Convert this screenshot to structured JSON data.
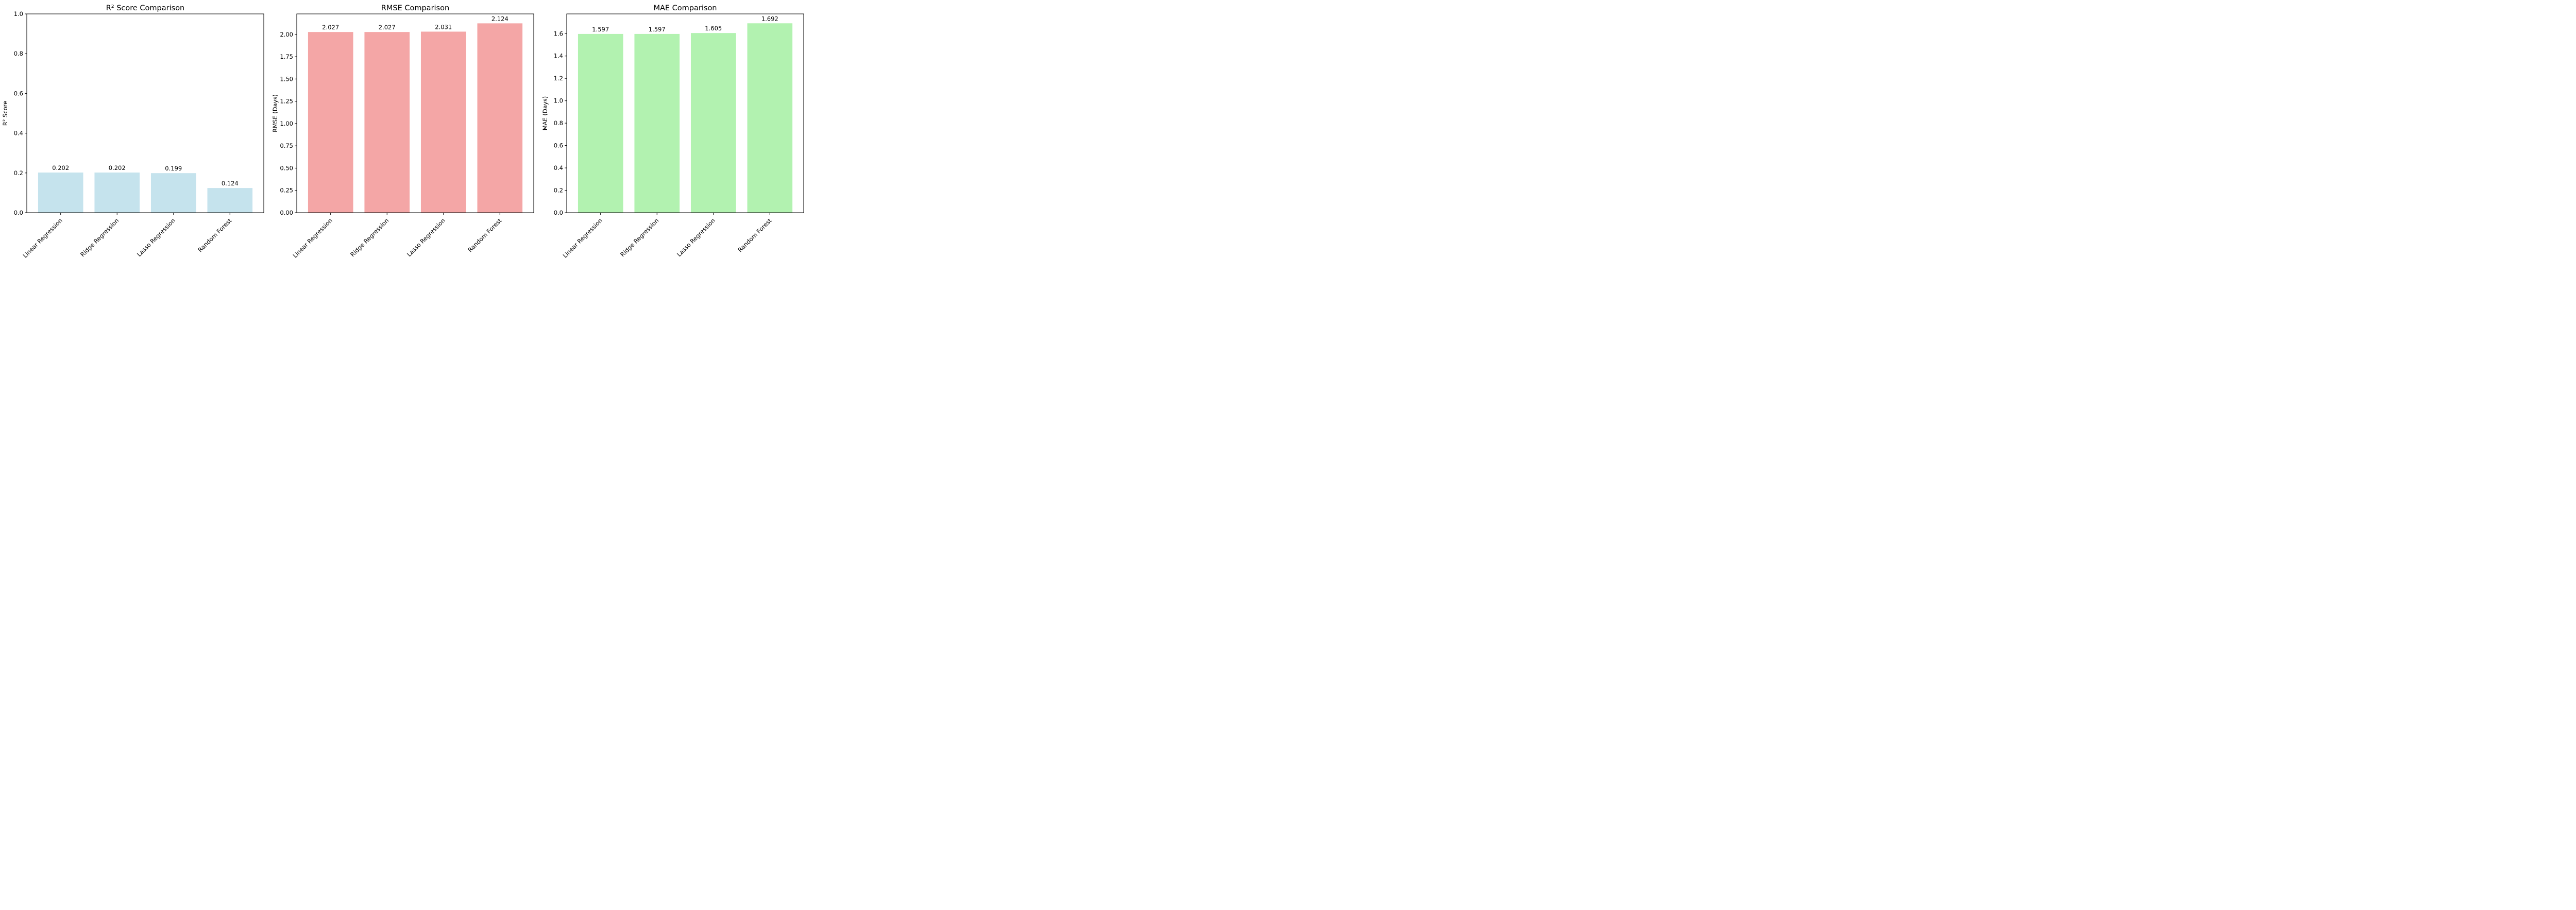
{
  "chart_data": [
    {
      "type": "bar",
      "title": "R² Score Comparison",
      "xlabel": "",
      "ylabel": "R² Score",
      "categories": [
        "Linear Regression",
        "Ridge Regression",
        "Lasso Regression",
        "Random Forest"
      ],
      "values": [
        0.202,
        0.202,
        0.199,
        0.124
      ],
      "value_labels": [
        "0.202",
        "0.202",
        "0.199",
        "0.124"
      ],
      "ylim": [
        0,
        1.0
      ],
      "yticks": [
        0.0,
        0.2,
        0.4,
        0.6,
        0.8,
        1.0
      ],
      "ytick_labels": [
        "0.0",
        "0.2",
        "0.4",
        "0.6",
        "0.8",
        "1.0"
      ],
      "color": "#c5e3ed",
      "grid": false
    },
    {
      "type": "bar",
      "title": "RMSE Comparison",
      "xlabel": "",
      "ylabel": "RMSE (Days)",
      "categories": [
        "Linear Regression",
        "Ridge Regression",
        "Lasso Regression",
        "Random Forest"
      ],
      "values": [
        2.027,
        2.027,
        2.031,
        2.124
      ],
      "value_labels": [
        "2.027",
        "2.027",
        "2.031",
        "2.124"
      ],
      "ylim": [
        0,
        2.23
      ],
      "yticks": [
        0.0,
        0.25,
        0.5,
        0.75,
        1.0,
        1.25,
        1.5,
        1.75,
        2.0
      ],
      "ytick_labels": [
        "0.00",
        "0.25",
        "0.50",
        "0.75",
        "1.00",
        "1.25",
        "1.50",
        "1.75",
        "2.00"
      ],
      "color": "#f4a6a6",
      "grid": false
    },
    {
      "type": "bar",
      "title": "MAE Comparison",
      "xlabel": "",
      "ylabel": "MAE (Days)",
      "categories": [
        "Linear Regression",
        "Ridge Regression",
        "Lasso Regression",
        "Random Forest"
      ],
      "values": [
        1.597,
        1.597,
        1.605,
        1.692
      ],
      "value_labels": [
        "1.597",
        "1.597",
        "1.605",
        "1.692"
      ],
      "ylim": [
        0,
        1.776
      ],
      "yticks": [
        0.0,
        0.2,
        0.4,
        0.6,
        0.8,
        1.0,
        1.2,
        1.4,
        1.6
      ],
      "ytick_labels": [
        "0.0",
        "0.2",
        "0.4",
        "0.6",
        "0.8",
        "1.0",
        "1.2",
        "1.4",
        "1.6"
      ],
      "color": "#b2f2b0",
      "grid": false
    }
  ]
}
